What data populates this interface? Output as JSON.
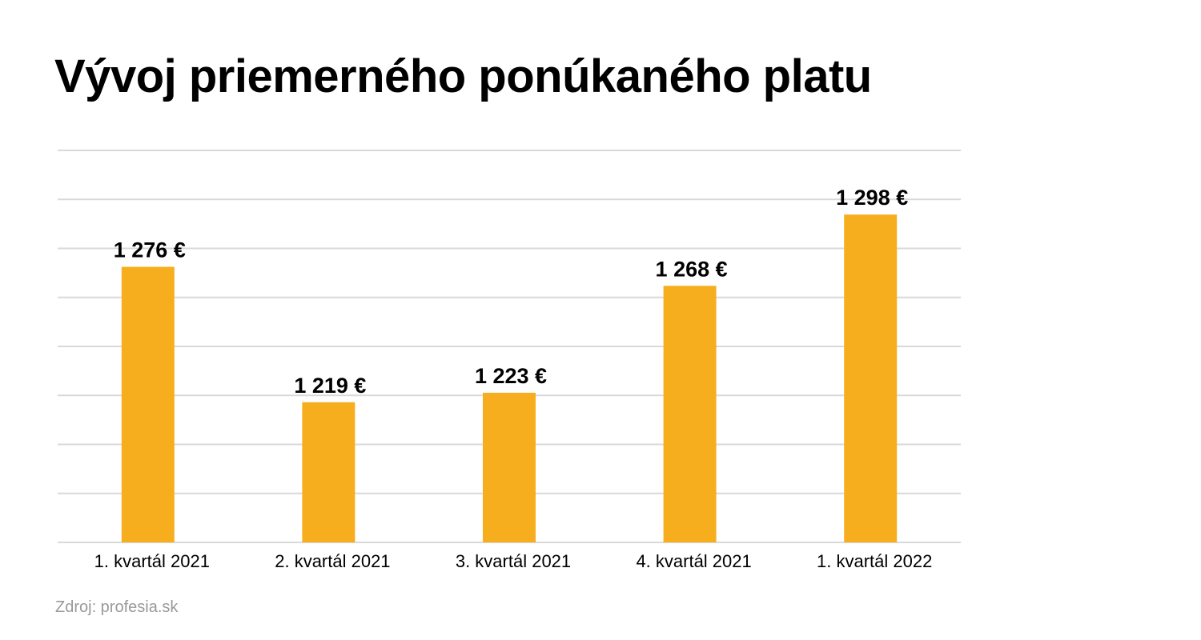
{
  "chart_data": {
    "type": "bar",
    "title": "Vývoj priemerného ponúkaného platu",
    "categories": [
      "1. kvartál 2021",
      "2. kvartál 2021",
      "3. kvartál 2021",
      "4. kvartál 2021",
      "1. kvartál 2022"
    ],
    "series": [
      {
        "values": [
          1276,
          1219,
          1223,
          1268,
          1298
        ],
        "value_labels": [
          "1 276 €",
          "1 219 €",
          "1 223 €",
          "1 268 €",
          "1 298 €"
        ],
        "color": "#f7ae1e"
      }
    ],
    "xlabel": "",
    "ylabel": "",
    "ylim": [
      1160,
      1325
    ],
    "grid": true,
    "y_axis_labels_shown": false,
    "legend": "none"
  },
  "source": "Zdroj: profesia.sk",
  "colors": {
    "bar": "#f7ae1e",
    "grid": "#d9d9d9",
    "source_text": "#999999"
  }
}
